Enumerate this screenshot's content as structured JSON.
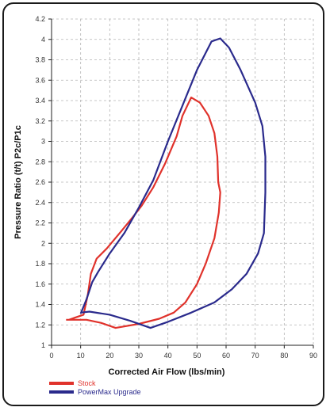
{
  "chart_data": {
    "type": "line",
    "title": "",
    "xlabel": "Corrected Air Flow (lbs/min)",
    "ylabel": "Pressure Ratio (t/t) P2c/P1c",
    "xlim": [
      0,
      90
    ],
    "ylim": [
      1,
      4.2
    ],
    "xticks": [
      0,
      10,
      20,
      30,
      40,
      50,
      60,
      70,
      80,
      90
    ],
    "yticks": [
      1,
      1.2,
      1.4,
      1.6,
      1.8,
      2,
      2.2,
      2.4,
      2.6,
      2.8,
      3,
      3.2,
      3.4,
      3.6,
      3.8,
      4,
      4.2
    ],
    "grid": true,
    "legend_position": "bottom-left",
    "series": [
      {
        "name": "Stock",
        "color": "#e0322b",
        "points": [
          [
            6,
            1.25
          ],
          [
            8,
            1.27
          ],
          [
            11,
            1.3
          ],
          [
            12.5,
            1.5
          ],
          [
            13.5,
            1.7
          ],
          [
            15.5,
            1.85
          ],
          [
            19,
            1.95
          ],
          [
            24,
            2.12
          ],
          [
            28,
            2.26
          ],
          [
            31,
            2.37
          ],
          [
            35,
            2.55
          ],
          [
            39,
            2.78
          ],
          [
            43,
            3.05
          ],
          [
            45,
            3.25
          ],
          [
            48,
            3.43
          ],
          [
            51,
            3.38
          ],
          [
            54,
            3.25
          ],
          [
            56,
            3.08
          ],
          [
            57,
            2.85
          ],
          [
            57.3,
            2.6
          ],
          [
            58,
            2.5
          ],
          [
            57.5,
            2.3
          ],
          [
            56,
            2.05
          ],
          [
            53,
            1.8
          ],
          [
            50,
            1.6
          ],
          [
            46,
            1.42
          ],
          [
            42,
            1.32
          ],
          [
            37,
            1.26
          ],
          [
            30,
            1.21
          ],
          [
            22,
            1.17
          ],
          [
            17,
            1.22
          ],
          [
            12,
            1.25
          ],
          [
            5,
            1.25
          ]
        ]
      },
      {
        "name": "PowerMax Upgrade",
        "color": "#2a2a8c",
        "points": [
          [
            10,
            1.31
          ],
          [
            12,
            1.45
          ],
          [
            14,
            1.62
          ],
          [
            16,
            1.72
          ],
          [
            20,
            1.9
          ],
          [
            25,
            2.1
          ],
          [
            30,
            2.35
          ],
          [
            35,
            2.62
          ],
          [
            40,
            3.0
          ],
          [
            45,
            3.35
          ],
          [
            50,
            3.7
          ],
          [
            55,
            3.98
          ],
          [
            58,
            4.01
          ],
          [
            61,
            3.92
          ],
          [
            65,
            3.7
          ],
          [
            70,
            3.38
          ],
          [
            72.5,
            3.15
          ],
          [
            73.5,
            2.85
          ],
          [
            73.5,
            2.5
          ],
          [
            73,
            2.1
          ],
          [
            71,
            1.9
          ],
          [
            67,
            1.7
          ],
          [
            62,
            1.55
          ],
          [
            56,
            1.42
          ],
          [
            48,
            1.32
          ],
          [
            40,
            1.23
          ],
          [
            34,
            1.17
          ],
          [
            27,
            1.24
          ],
          [
            20,
            1.3
          ],
          [
            13,
            1.33
          ],
          [
            10,
            1.32
          ]
        ]
      }
    ]
  }
}
